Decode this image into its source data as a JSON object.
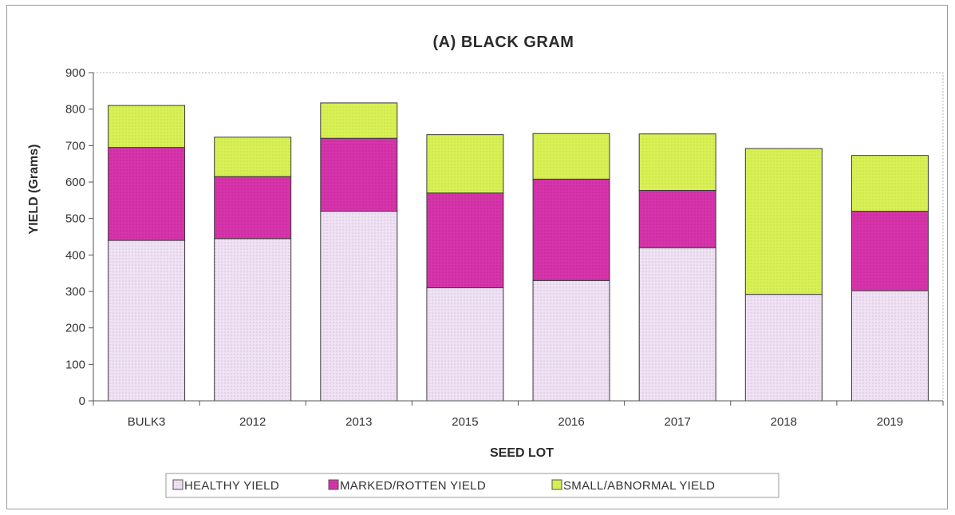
{
  "chart_data": {
    "type": "bar",
    "stacked": true,
    "title": "(A)  BLACK GRAM",
    "xlabel": "SEED LOT",
    "ylabel": "YIELD (Grams)",
    "ylim": [
      0,
      900
    ],
    "yticks": [
      0,
      100,
      200,
      300,
      400,
      500,
      600,
      700,
      800,
      900
    ],
    "grid": false,
    "legend_position": "bottom",
    "categories": [
      "BULK3",
      "2012",
      "2013",
      "2015",
      "2016",
      "2017",
      "2018",
      "2019"
    ],
    "series": [
      {
        "name": "HEALTHY YIELD",
        "color": "#ecdcf0",
        "values": [
          440,
          445,
          520,
          310,
          330,
          420,
          292,
          302
        ]
      },
      {
        "name": "MARKED/ROTTEN YIELD",
        "color": "#d431a8",
        "values": [
          255,
          170,
          200,
          260,
          278,
          157,
          0,
          218
        ]
      },
      {
        "name": "SMALL/ABNORMAL YIELD",
        "color": "#d7ef4f",
        "values": [
          115,
          108,
          97,
          160,
          125,
          155,
          400,
          153
        ]
      }
    ]
  }
}
